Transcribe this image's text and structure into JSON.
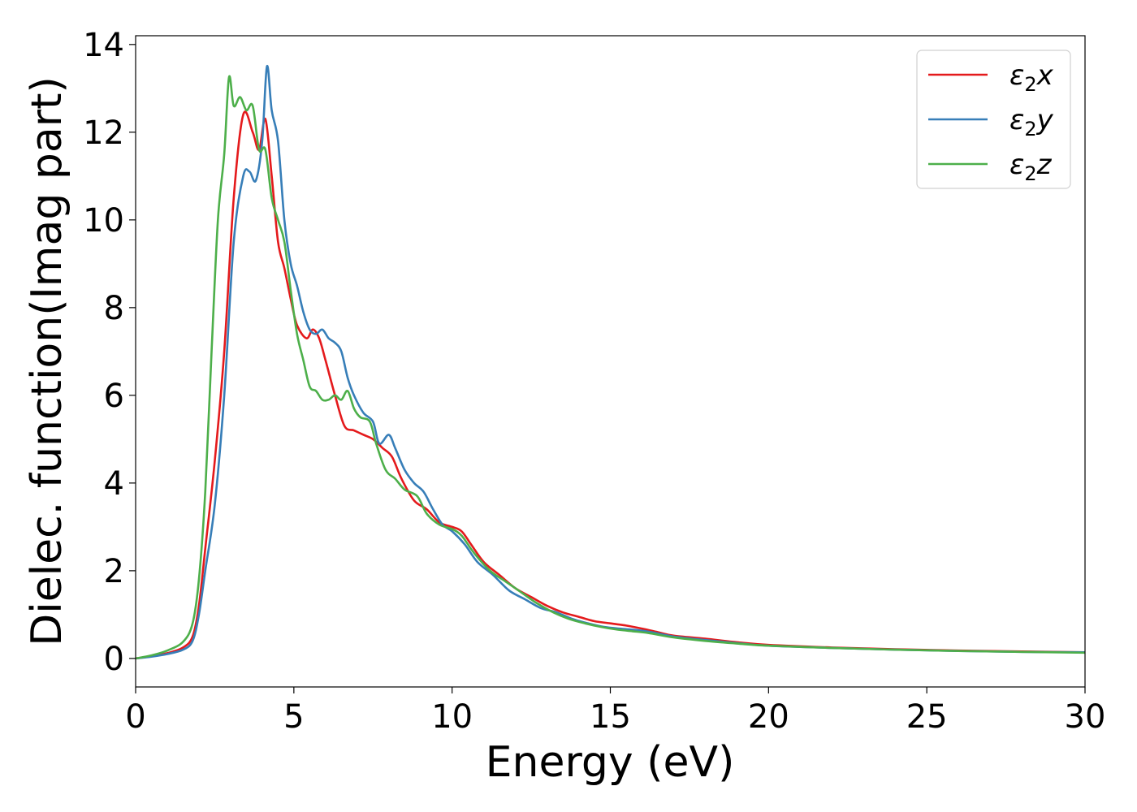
{
  "chart_data": {
    "type": "line",
    "title": "",
    "xlabel": "Energy (eV)",
    "ylabel": "Dielec. function(Imag part)",
    "xlim": [
      0,
      30
    ],
    "ylim": [
      -0.65,
      14.2
    ],
    "xticks": [
      0,
      5,
      10,
      15,
      20,
      25,
      30
    ],
    "yticks": [
      0,
      2,
      4,
      6,
      8,
      10,
      12,
      14
    ],
    "grid": false,
    "legend_position": "top-right",
    "series": [
      {
        "name": "ε₂x",
        "legend_base": "ε",
        "legend_sub": "2",
        "legend_tail": "x",
        "color": "#e41a1c",
        "points": [
          [
            0,
            0
          ],
          [
            0.5,
            0.05
          ],
          [
            1.0,
            0.12
          ],
          [
            1.5,
            0.25
          ],
          [
            1.8,
            0.5
          ],
          [
            2.0,
            1.2
          ],
          [
            2.2,
            2.5
          ],
          [
            2.5,
            4.5
          ],
          [
            2.8,
            7.0
          ],
          [
            3.1,
            10.5
          ],
          [
            3.4,
            12.4
          ],
          [
            3.7,
            12.0
          ],
          [
            3.9,
            11.6
          ],
          [
            4.1,
            12.3
          ],
          [
            4.3,
            11.0
          ],
          [
            4.5,
            9.5
          ],
          [
            4.7,
            8.9
          ],
          [
            4.9,
            8.2
          ],
          [
            5.1,
            7.6
          ],
          [
            5.4,
            7.3
          ],
          [
            5.6,
            7.5
          ],
          [
            5.8,
            7.3
          ],
          [
            6.0,
            6.8
          ],
          [
            6.3,
            6.0
          ],
          [
            6.6,
            5.3
          ],
          [
            6.9,
            5.2
          ],
          [
            7.2,
            5.1
          ],
          [
            7.5,
            5.0
          ],
          [
            7.8,
            4.8
          ],
          [
            8.1,
            4.6
          ],
          [
            8.4,
            4.1
          ],
          [
            8.8,
            3.6
          ],
          [
            9.2,
            3.4
          ],
          [
            9.6,
            3.1
          ],
          [
            10.0,
            3.0
          ],
          [
            10.3,
            2.9
          ],
          [
            10.6,
            2.6
          ],
          [
            11.0,
            2.2
          ],
          [
            11.5,
            1.9
          ],
          [
            12.0,
            1.6
          ],
          [
            12.5,
            1.4
          ],
          [
            13.0,
            1.2
          ],
          [
            13.5,
            1.05
          ],
          [
            14.0,
            0.95
          ],
          [
            14.5,
            0.85
          ],
          [
            15.0,
            0.8
          ],
          [
            15.5,
            0.75
          ],
          [
            16.0,
            0.68
          ],
          [
            16.5,
            0.6
          ],
          [
            17.0,
            0.52
          ],
          [
            18.0,
            0.45
          ],
          [
            19.0,
            0.37
          ],
          [
            20.0,
            0.31
          ],
          [
            22.0,
            0.25
          ],
          [
            24.0,
            0.21
          ],
          [
            26.0,
            0.18
          ],
          [
            28.0,
            0.16
          ],
          [
            30.0,
            0.14
          ]
        ]
      },
      {
        "name": "ε₂y",
        "legend_base": "ε",
        "legend_sub": "2",
        "legend_tail": "y",
        "color": "#377eb8",
        "points": [
          [
            0,
            0
          ],
          [
            0.5,
            0.04
          ],
          [
            1.0,
            0.1
          ],
          [
            1.5,
            0.2
          ],
          [
            1.8,
            0.4
          ],
          [
            2.0,
            1.0
          ],
          [
            2.2,
            2.0
          ],
          [
            2.5,
            3.5
          ],
          [
            2.8,
            6.0
          ],
          [
            3.1,
            9.5
          ],
          [
            3.4,
            11.0
          ],
          [
            3.6,
            11.1
          ],
          [
            3.8,
            10.9
          ],
          [
            4.0,
            11.8
          ],
          [
            4.15,
            13.5
          ],
          [
            4.3,
            12.5
          ],
          [
            4.5,
            11.8
          ],
          [
            4.7,
            10.0
          ],
          [
            4.9,
            9.0
          ],
          [
            5.1,
            8.5
          ],
          [
            5.3,
            7.9
          ],
          [
            5.5,
            7.5
          ],
          [
            5.7,
            7.4
          ],
          [
            5.9,
            7.5
          ],
          [
            6.1,
            7.3
          ],
          [
            6.3,
            7.2
          ],
          [
            6.5,
            7.0
          ],
          [
            6.7,
            6.4
          ],
          [
            6.9,
            6.0
          ],
          [
            7.2,
            5.6
          ],
          [
            7.5,
            5.4
          ],
          [
            7.7,
            4.9
          ],
          [
            8.0,
            5.1
          ],
          [
            8.2,
            4.8
          ],
          [
            8.5,
            4.3
          ],
          [
            8.8,
            4.0
          ],
          [
            9.1,
            3.8
          ],
          [
            9.4,
            3.4
          ],
          [
            9.7,
            3.05
          ],
          [
            10.0,
            2.9
          ],
          [
            10.4,
            2.6
          ],
          [
            10.8,
            2.2
          ],
          [
            11.3,
            1.9
          ],
          [
            11.8,
            1.55
          ],
          [
            12.3,
            1.35
          ],
          [
            12.8,
            1.15
          ],
          [
            13.3,
            1.05
          ],
          [
            13.8,
            0.9
          ],
          [
            14.3,
            0.8
          ],
          [
            14.8,
            0.72
          ],
          [
            15.3,
            0.68
          ],
          [
            15.8,
            0.65
          ],
          [
            16.3,
            0.6
          ],
          [
            17.0,
            0.5
          ],
          [
            18.0,
            0.42
          ],
          [
            19.0,
            0.35
          ],
          [
            20.0,
            0.29
          ],
          [
            22.0,
            0.24
          ],
          [
            24.0,
            0.2
          ],
          [
            26.0,
            0.17
          ],
          [
            28.0,
            0.15
          ],
          [
            30.0,
            0.14
          ]
        ]
      },
      {
        "name": "ε₂z",
        "legend_base": "ε",
        "legend_sub": "2",
        "legend_tail": "z",
        "color": "#4daf4a",
        "points": [
          [
            0,
            0
          ],
          [
            0.5,
            0.07
          ],
          [
            1.0,
            0.18
          ],
          [
            1.5,
            0.38
          ],
          [
            1.8,
            0.8
          ],
          [
            2.0,
            1.8
          ],
          [
            2.2,
            3.8
          ],
          [
            2.4,
            7.0
          ],
          [
            2.6,
            10.0
          ],
          [
            2.8,
            11.5
          ],
          [
            2.95,
            13.25
          ],
          [
            3.1,
            12.6
          ],
          [
            3.3,
            12.8
          ],
          [
            3.5,
            12.5
          ],
          [
            3.7,
            12.6
          ],
          [
            3.9,
            11.6
          ],
          [
            4.1,
            11.6
          ],
          [
            4.3,
            10.5
          ],
          [
            4.5,
            10.0
          ],
          [
            4.7,
            9.5
          ],
          [
            4.9,
            8.4
          ],
          [
            5.1,
            7.4
          ],
          [
            5.3,
            6.8
          ],
          [
            5.5,
            6.2
          ],
          [
            5.7,
            6.1
          ],
          [
            5.9,
            5.9
          ],
          [
            6.1,
            5.9
          ],
          [
            6.3,
            6.0
          ],
          [
            6.5,
            5.9
          ],
          [
            6.7,
            6.1
          ],
          [
            6.9,
            5.7
          ],
          [
            7.1,
            5.5
          ],
          [
            7.4,
            5.4
          ],
          [
            7.6,
            4.9
          ],
          [
            7.9,
            4.3
          ],
          [
            8.2,
            4.1
          ],
          [
            8.5,
            3.85
          ],
          [
            8.9,
            3.7
          ],
          [
            9.2,
            3.3
          ],
          [
            9.6,
            3.05
          ],
          [
            10.0,
            2.95
          ],
          [
            10.3,
            2.8
          ],
          [
            10.7,
            2.4
          ],
          [
            11.2,
            2.0
          ],
          [
            11.7,
            1.75
          ],
          [
            12.2,
            1.5
          ],
          [
            12.7,
            1.25
          ],
          [
            13.2,
            1.05
          ],
          [
            13.7,
            0.9
          ],
          [
            14.2,
            0.8
          ],
          [
            14.7,
            0.72
          ],
          [
            15.2,
            0.66
          ],
          [
            15.7,
            0.62
          ],
          [
            16.2,
            0.58
          ],
          [
            17.0,
            0.48
          ],
          [
            18.0,
            0.4
          ],
          [
            19.0,
            0.34
          ],
          [
            20.0,
            0.29
          ],
          [
            22.0,
            0.24
          ],
          [
            24.0,
            0.2
          ],
          [
            26.0,
            0.17
          ],
          [
            28.0,
            0.15
          ],
          [
            30.0,
            0.13
          ]
        ]
      }
    ]
  }
}
